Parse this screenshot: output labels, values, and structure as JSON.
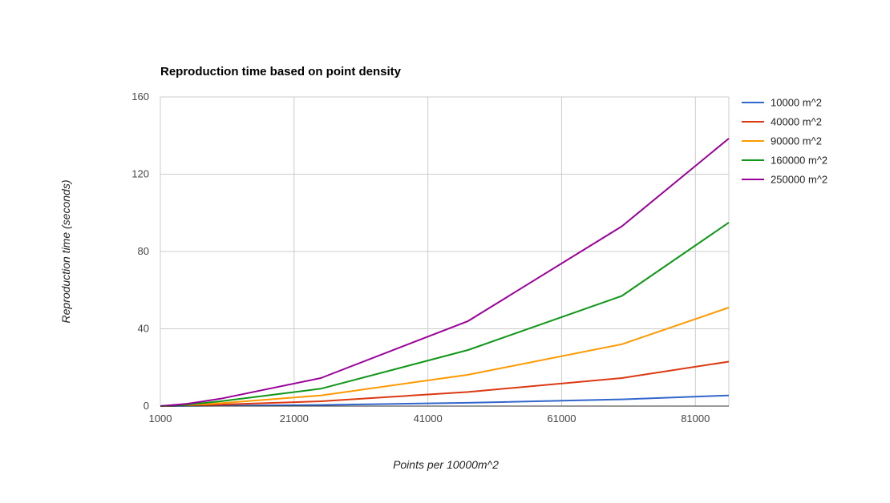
{
  "chart_data": {
    "type": "line",
    "title": "Reproduction time based on point density",
    "xlabel": "Points per 10000m^2",
    "ylabel": "Reproduction time (seconds)",
    "xlim": [
      1000,
      86000
    ],
    "ylim": [
      0,
      160
    ],
    "x_ticks": [
      "1000",
      "21000",
      "41000",
      "61000",
      "81000"
    ],
    "y_ticks": [
      "0",
      "40",
      "80",
      "120",
      "160"
    ],
    "grid": true,
    "legend_position": "right",
    "x": [
      1000,
      5000,
      10000,
      25000,
      47000,
      70000,
      86000
    ],
    "series": [
      {
        "name": "10000 m^2",
        "color": "#3366cc",
        "values": [
          0,
          0.1,
          0.2,
          0.6,
          1.7,
          3.5,
          5.5
        ]
      },
      {
        "name": "40000 m^2",
        "color": "#dc3912",
        "values": [
          0,
          0.3,
          0.8,
          2.5,
          7.3,
          14.5,
          23
        ]
      },
      {
        "name": "90000 m^2",
        "color": "#ff9900",
        "values": [
          0,
          0.5,
          1.5,
          5.5,
          16.2,
          32,
          51
        ]
      },
      {
        "name": "160000 m^2",
        "color": "#109618",
        "values": [
          0,
          0.8,
          2.5,
          9,
          29,
          57,
          95
        ]
      },
      {
        "name": "250000 m^2",
        "color": "#990099",
        "values": [
          0,
          1.2,
          3.8,
          14.5,
          44,
          93,
          138.5
        ]
      }
    ]
  }
}
